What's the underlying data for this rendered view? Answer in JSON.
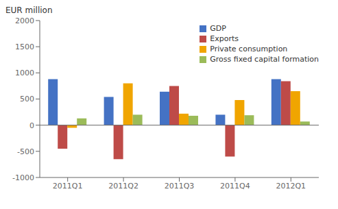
{
  "chart_data": {
    "type": "bar",
    "categories": [
      "2011Q1",
      "2011Q2",
      "2011Q3",
      "2011Q4",
      "2012Q1"
    ],
    "series": [
      {
        "name": "GDP",
        "color": "#4472C4",
        "values": [
          880,
          540,
          640,
          200,
          880
        ]
      },
      {
        "name": "Exports",
        "color": "#BE4B48",
        "values": [
          -450,
          -650,
          750,
          -600,
          840
        ]
      },
      {
        "name": "Private consumption",
        "color": "#F0A500",
        "values": [
          -50,
          800,
          220,
          480,
          650
        ]
      },
      {
        "name": "Gross fixed capital formation",
        "color": "#9BBB59",
        "values": [
          130,
          200,
          180,
          190,
          70
        ]
      }
    ],
    "ylabel": "EUR million",
    "ylim": [
      -1000,
      2000
    ],
    "yticks": [
      -1000,
      -500,
      0,
      500,
      1000,
      1500,
      2000
    ],
    "grid": false,
    "legend": "upper right"
  }
}
